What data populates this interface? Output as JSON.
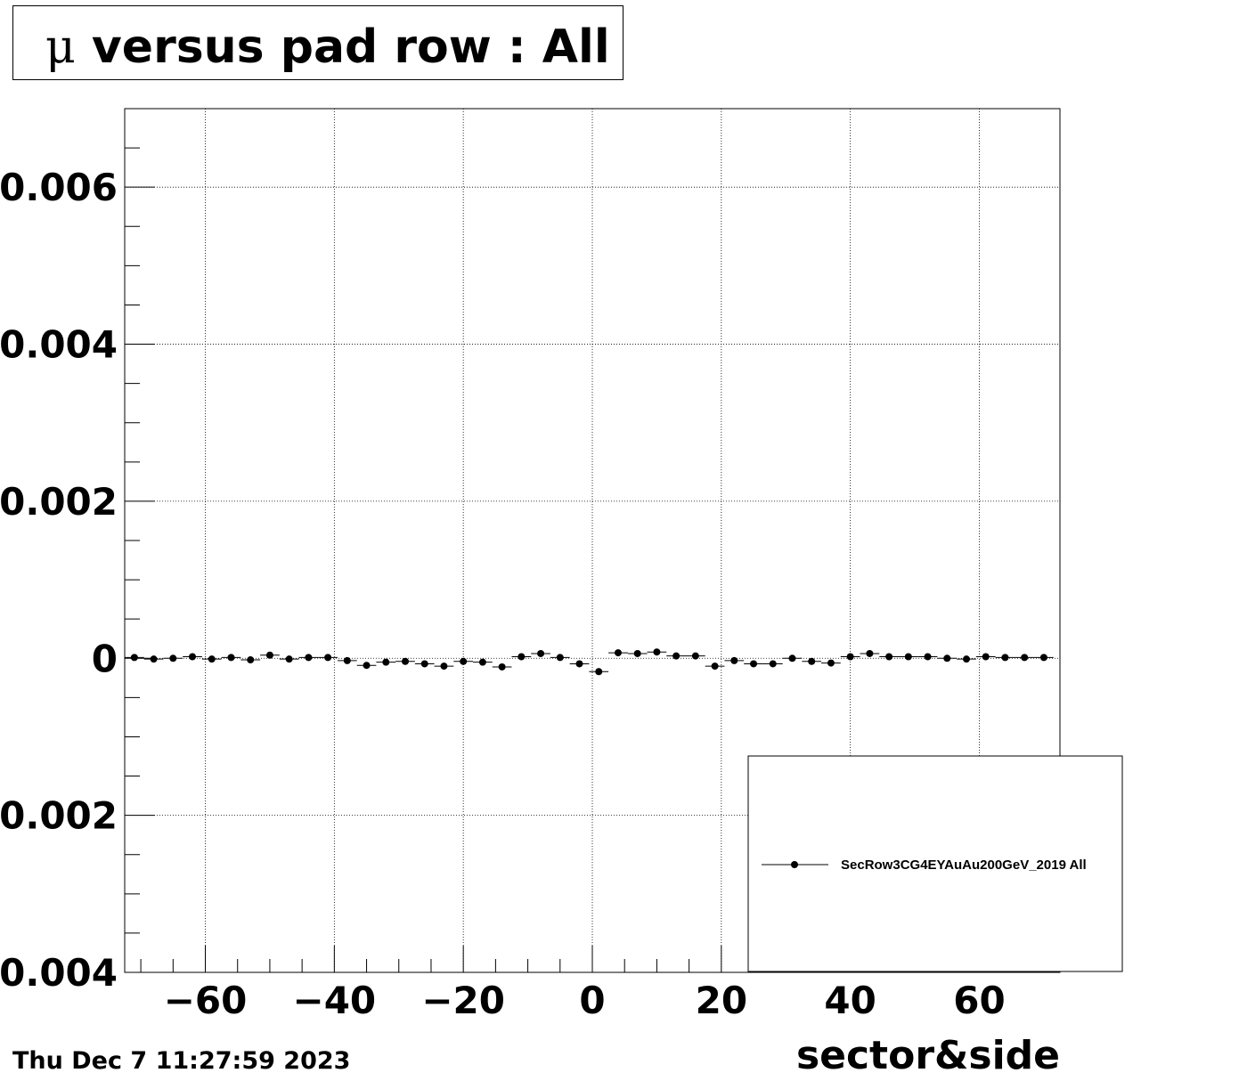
{
  "title": {
    "mu_symbol": "μ",
    "text": "versus pad row : All"
  },
  "timestamp": "Thu Dec  7 11:27:59 2023",
  "chart_data": {
    "type": "scatter",
    "title": "μ versus pad row : All",
    "xlabel": "sector&side",
    "ylabel": "",
    "xlim": [
      -72.5,
      72.5
    ],
    "ylim": [
      -0.004,
      0.007
    ],
    "grid": true,
    "xticks": [
      -60,
      -40,
      -20,
      0,
      20,
      40,
      60
    ],
    "xtick_labels": [
      "−60",
      "−40",
      "−20",
      "0",
      "20",
      "40",
      "60"
    ],
    "yticks": [
      -0.004,
      -0.002,
      0,
      0.002,
      0.004,
      0.006
    ],
    "ytick_labels": [
      "0.004",
      "0.002",
      "0",
      "0.002",
      "0.004",
      "0.006"
    ],
    "legend": {
      "position": "bottom-right",
      "entries": [
        "SecRow3CG4EYAuAu200GeV_2019 All"
      ]
    },
    "series": [
      {
        "name": "SecRow3CG4EYAuAu200GeV_2019 All",
        "color": "#000000",
        "x": [
          -71,
          -68,
          -65,
          -62,
          -59,
          -56,
          -53,
          -50,
          -47,
          -44,
          -41,
          -38,
          -35,
          -32,
          -29,
          -26,
          -23,
          -20,
          -17,
          -14,
          -11,
          -8,
          -5,
          -2,
          1,
          4,
          7,
          10,
          13,
          16,
          19,
          22,
          25,
          28,
          31,
          34,
          37,
          40,
          43,
          46,
          49,
          52,
          55,
          58,
          61,
          64,
          67,
          70
        ],
        "y": [
          1e-05,
          -1e-05,
          0.0,
          2e-05,
          -1e-05,
          1e-05,
          -2e-05,
          4e-05,
          -1e-05,
          1e-05,
          1e-05,
          -3e-05,
          -9e-05,
          -5e-05,
          -4e-05,
          -7e-05,
          -0.0001,
          -4e-05,
          -5e-05,
          -0.00011,
          2e-05,
          6e-05,
          1e-05,
          -7e-05,
          -0.00017,
          7e-05,
          6e-05,
          8e-05,
          3e-05,
          3e-05,
          -0.0001,
          -3e-05,
          -7e-05,
          -7e-05,
          0.0,
          -4e-05,
          -6e-05,
          2e-05,
          6e-05,
          2e-05,
          2e-05,
          2e-05,
          0.0,
          -1e-05,
          2e-05,
          1e-05,
          1e-05,
          1e-05
        ],
        "yerr": [
          1e-05,
          1e-05,
          1e-05,
          1e-05,
          1e-05,
          1e-05,
          1e-05,
          1e-05,
          1e-05,
          1e-05,
          1e-05,
          2e-05,
          2e-05,
          2e-05,
          2e-05,
          2e-05,
          2e-05,
          2e-05,
          2e-05,
          2e-05,
          2e-05,
          2e-05,
          2e-05,
          3e-05,
          4e-05,
          4e-05,
          4e-05,
          3e-05,
          3e-05,
          2e-05,
          3e-05,
          2e-05,
          2e-05,
          2e-05,
          2e-05,
          2e-05,
          2e-05,
          2e-05,
          1e-05,
          1e-05,
          1e-05,
          1e-05,
          1e-05,
          1e-05,
          1e-05,
          1e-05,
          1e-05,
          1e-05
        ],
        "xerr": 1.5
      }
    ]
  }
}
